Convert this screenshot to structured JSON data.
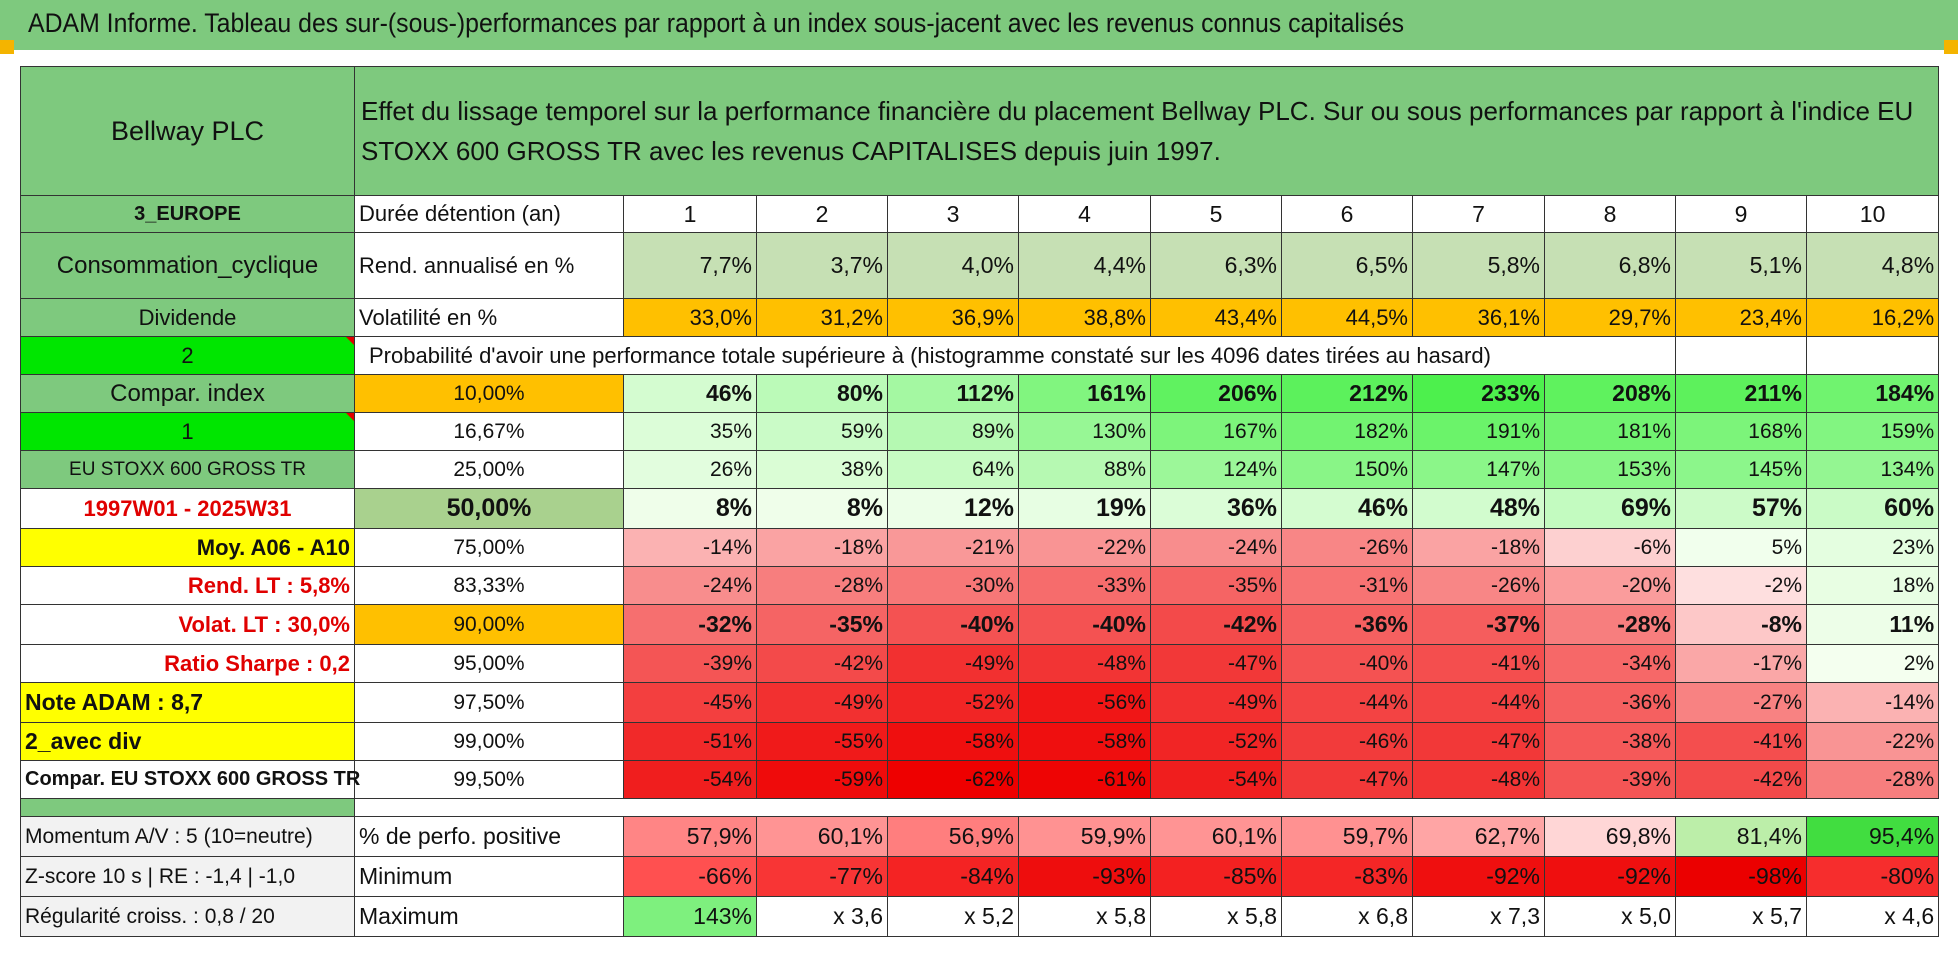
{
  "page_title": "ADAM Informe. Tableau des sur-(sous-)performances par rapport à un index sous-jacent avec les revenus connus capitalisés",
  "header": {
    "stock": "Bellway PLC",
    "description": "Effet du lissage temporel sur la performance financière du placement Bellway PLC. Sur ou sous performances par rapport à l'indice EU STOXX 600 GROSS TR avec les revenus CAPITALISES depuis juin 1997."
  },
  "sidebar": {
    "region": "3_EUROPE",
    "sector": "Consommation_cyclique",
    "dividend": "Dividende",
    "value_2": "2",
    "compar_index": "Compar. index",
    "value_1": "1",
    "index_name": "EU STOXX 600 GROSS TR",
    "period": "1997W01 - 2025W31",
    "moy": "Moy. A06 - A10",
    "rend_lt": "Rend. LT :    5,8%",
    "volat_lt": "Volat. LT :    30,0%",
    "sharpe": "Ratio Sharpe :     0,2",
    "note": "Note ADAM : 8,7",
    "avec_div": "2_avec div",
    "compar_full": "Compar. EU STOXX 600 GROSS TR",
    "momentum": "Momentum A/V : 5 (10=neutre)",
    "zscore": "Z-score 10 s | RE : -1,4 | -1,0",
    "regularite": "Régularité croiss. : 0,8 / 20"
  },
  "row_labels": {
    "duration": "Durée détention (an)",
    "rend": "Rend. annualisé en %",
    "volat": "Volatilité en %",
    "probability": "Probabilité d'avoir une performance totale supérieure à (histogramme constaté sur les 4096 dates tirées au hasard)",
    "positive": "% de perfo. positive",
    "minimum": "Minimum",
    "maximum": "Maximum"
  },
  "years": [
    "1",
    "2",
    "3",
    "4",
    "5",
    "6",
    "7",
    "8",
    "9",
    "10"
  ],
  "rend": [
    "7,7%",
    "3,7%",
    "4,0%",
    "4,4%",
    "6,3%",
    "6,5%",
    "5,8%",
    "6,8%",
    "5,1%",
    "4,8%"
  ],
  "volat": [
    "33,0%",
    "31,2%",
    "36,9%",
    "38,8%",
    "43,4%",
    "44,5%",
    "36,1%",
    "29,7%",
    "23,4%",
    "16,2%"
  ],
  "quantiles": [
    {
      "label": "10,00%",
      "values": [
        "46%",
        "80%",
        "112%",
        "161%",
        "206%",
        "212%",
        "233%",
        "208%",
        "211%",
        "184%"
      ]
    },
    {
      "label": "16,67%",
      "values": [
        "35%",
        "59%",
        "89%",
        "130%",
        "167%",
        "182%",
        "191%",
        "181%",
        "168%",
        "159%"
      ]
    },
    {
      "label": "25,00%",
      "values": [
        "26%",
        "38%",
        "64%",
        "88%",
        "124%",
        "150%",
        "147%",
        "153%",
        "145%",
        "134%"
      ]
    },
    {
      "label": "50,00%",
      "values": [
        "8%",
        "8%",
        "12%",
        "19%",
        "36%",
        "46%",
        "48%",
        "69%",
        "57%",
        "60%"
      ]
    },
    {
      "label": "75,00%",
      "values": [
        "-14%",
        "-18%",
        "-21%",
        "-22%",
        "-24%",
        "-26%",
        "-18%",
        "-6%",
        "5%",
        "23%"
      ]
    },
    {
      "label": "83,33%",
      "values": [
        "-24%",
        "-28%",
        "-30%",
        "-33%",
        "-35%",
        "-31%",
        "-26%",
        "-20%",
        "-2%",
        "18%"
      ]
    },
    {
      "label": "90,00%",
      "values": [
        "-32%",
        "-35%",
        "-40%",
        "-40%",
        "-42%",
        "-36%",
        "-37%",
        "-28%",
        "-8%",
        "11%"
      ]
    },
    {
      "label": "95,00%",
      "values": [
        "-39%",
        "-42%",
        "-49%",
        "-48%",
        "-47%",
        "-40%",
        "-41%",
        "-34%",
        "-17%",
        "2%"
      ]
    },
    {
      "label": "97,50%",
      "values": [
        "-45%",
        "-49%",
        "-52%",
        "-56%",
        "-49%",
        "-44%",
        "-44%",
        "-36%",
        "-27%",
        "-14%"
      ]
    },
    {
      "label": "99,00%",
      "values": [
        "-51%",
        "-55%",
        "-58%",
        "-58%",
        "-52%",
        "-46%",
        "-47%",
        "-38%",
        "-41%",
        "-22%"
      ]
    },
    {
      "label": "99,50%",
      "values": [
        "-54%",
        "-59%",
        "-62%",
        "-61%",
        "-54%",
        "-47%",
        "-48%",
        "-39%",
        "-42%",
        "-28%"
      ]
    }
  ],
  "positive": [
    "57,9%",
    "60,1%",
    "56,9%",
    "59,9%",
    "60,1%",
    "59,7%",
    "62,7%",
    "69,8%",
    "81,4%",
    "95,4%"
  ],
  "minimum": [
    "-66%",
    "-77%",
    "-84%",
    "-93%",
    "-85%",
    "-83%",
    "-92%",
    "-92%",
    "-98%",
    "-80%"
  ],
  "maximum": [
    "143%",
    "x 3,6",
    "x 5,2",
    "x 5,8",
    "x 5,8",
    "x 6,8",
    "x 7,3",
    "x 5,0",
    "x 5,7",
    "x 4,6"
  ],
  "colors": {
    "header_green": "#7ec97e",
    "orange": "#ffc000",
    "yellow": "#ffff00",
    "bright_green": "#00e600",
    "red": "#ff0000",
    "light_green": "#c6e0b4"
  }
}
